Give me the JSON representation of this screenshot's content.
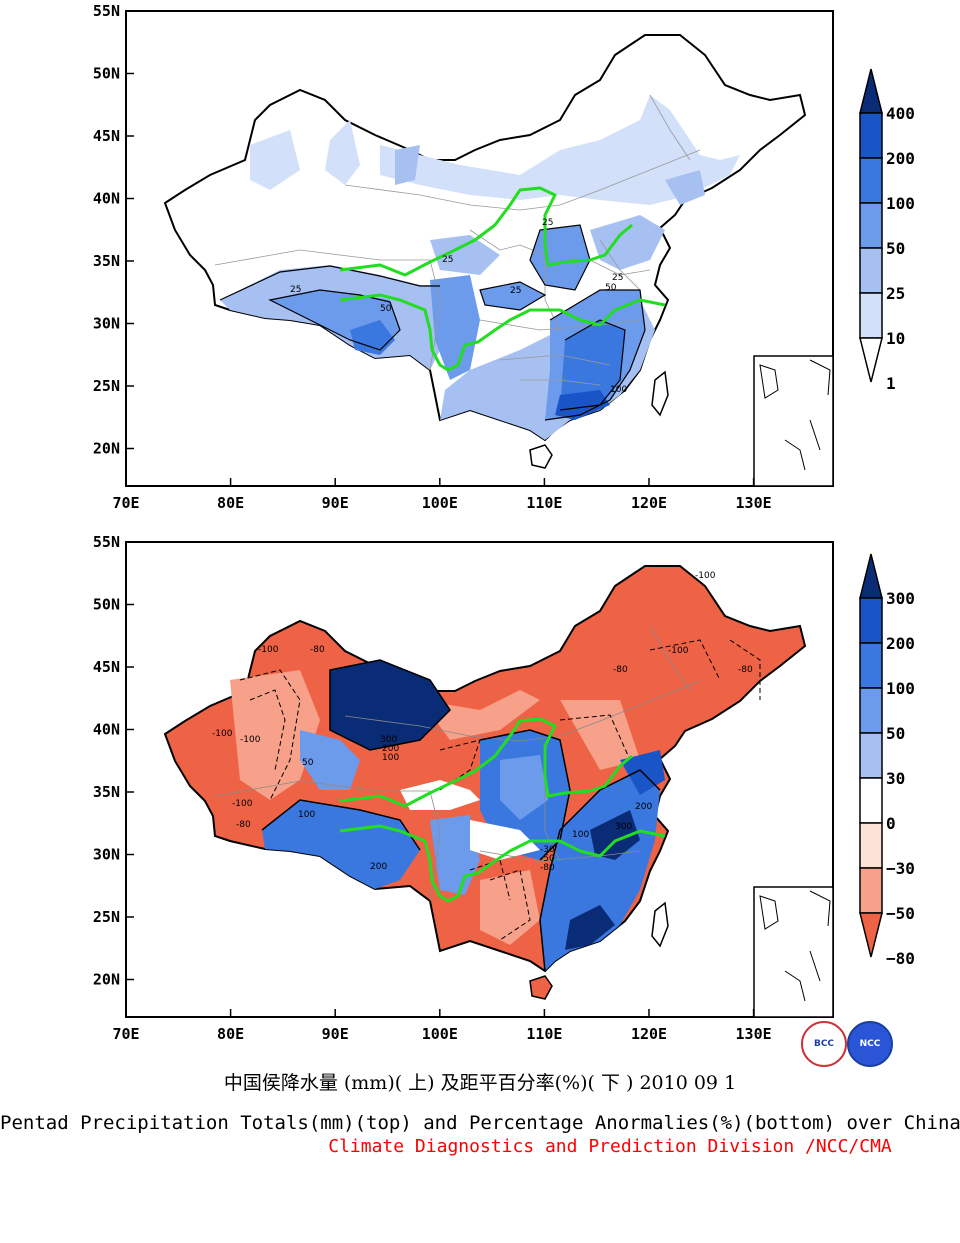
{
  "top_panel": {
    "lat_labels": [
      "55N",
      "50N",
      "45N",
      "40N",
      "35N",
      "30N",
      "25N",
      "20N"
    ],
    "lon_labels": [
      "70E",
      "80E",
      "90E",
      "100E",
      "110E",
      "120E",
      "130E"
    ],
    "colorbar_labels": [
      "400",
      "200",
      "100",
      "50",
      "25",
      "10",
      "1"
    ],
    "colorbar_colors": [
      "#0a2b75",
      "#1a55c8",
      "#3a78e0",
      "#6d9bec",
      "#a6c0f2",
      "#d3e0f9",
      "#ffffff"
    ],
    "contour_labels": [
      "25",
      "25",
      "25",
      "25",
      "50",
      "50",
      "100",
      "25"
    ]
  },
  "bottom_panel": {
    "lat_labels": [
      "55N",
      "50N",
      "45N",
      "40N",
      "35N",
      "30N",
      "25N",
      "20N"
    ],
    "lon_labels": [
      "70E",
      "80E",
      "90E",
      "100E",
      "110E",
      "120E",
      "130E"
    ],
    "colorbar_labels": [
      "300",
      "200",
      "100",
      "50",
      "30",
      "0",
      "−30",
      "−50",
      "−80"
    ],
    "colorbar_colors": [
      "#0a2b75",
      "#1a55c8",
      "#3a78e0",
      "#6d9bec",
      "#a6c0f2",
      "#ffffff",
      "#fde2d8",
      "#f7a08a",
      "#ee6245"
    ],
    "contour_labels": [
      "-100",
      "-80",
      "-100",
      "-100",
      "-80",
      "-100",
      "-80",
      "-100",
      "300",
      "200",
      "100",
      "50",
      "200",
      "100",
      "-30",
      "-50",
      "-80",
      "300",
      "200",
      "100",
      "-100",
      "-80"
    ]
  },
  "logos": {
    "left": "BCC",
    "right": "NCC"
  },
  "captions": {
    "chinese": "中国侯降水量 (mm)( 上) 及距平百分率(%)( 下 ) 2010 09 1",
    "english": "Pentad Precipitation Totals(mm)(top) and Percentage Anormalies(%)(bottom) over China",
    "credit": "Climate Diagnostics and Prediction Division /NCC/CMA"
  }
}
